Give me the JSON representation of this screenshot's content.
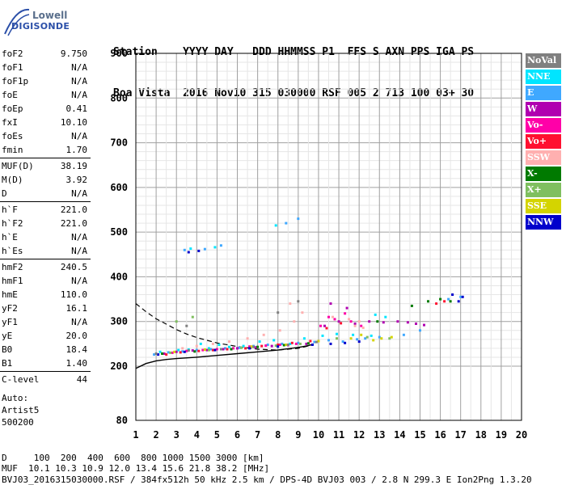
{
  "logo": {
    "line1": "Lowell",
    "line2": "DIGISONDE"
  },
  "header": {
    "line1": "Station    YYYY DAY   DDD HHMMSS P1  FFS S AXN PPS IGA PS",
    "line2": "Boa Vista  2016 Nov10 315 030000 RSF 005 2 713 100 03+ 30"
  },
  "params": [
    [
      {
        "k": "foF2",
        "v": "9.750"
      },
      {
        "k": "foF1",
        "v": "N/A"
      },
      {
        "k": "foF1p",
        "v": "N/A"
      },
      {
        "k": "foE",
        "v": "N/A"
      },
      {
        "k": "foEp",
        "v": "0.41"
      },
      {
        "k": "fxI",
        "v": "10.10"
      },
      {
        "k": "foEs",
        "v": "N/A"
      },
      {
        "k": "fmin",
        "v": "1.70"
      }
    ],
    [
      {
        "k": "MUF(D)",
        "v": "38.19"
      },
      {
        "k": "M(D)",
        "v": "3.92"
      },
      {
        "k": "D",
        "v": "N/A"
      }
    ],
    [
      {
        "k": "h`F",
        "v": "221.0"
      },
      {
        "k": "h`F2",
        "v": "221.0"
      },
      {
        "k": "h`E",
        "v": "N/A"
      },
      {
        "k": "h`Es",
        "v": "N/A"
      }
    ],
    [
      {
        "k": "hmF2",
        "v": "240.5"
      },
      {
        "k": "hmF1",
        "v": "N/A"
      },
      {
        "k": "hmE",
        "v": "110.0"
      },
      {
        "k": "yF2",
        "v": "16.1"
      },
      {
        "k": "yF1",
        "v": "N/A"
      },
      {
        "k": "yE",
        "v": "20.0"
      },
      {
        "k": "B0",
        "v": "18.4"
      },
      {
        "k": "B1",
        "v": "1.40"
      }
    ],
    [
      {
        "k": "C-level",
        "v": "44"
      }
    ]
  ],
  "auto": {
    "line1": "Auto:",
    "line2": "Artist5",
    "line3": "500200"
  },
  "legend": [
    {
      "label": "NoVal",
      "color": "#808080"
    },
    {
      "label": "NNE",
      "color": "#00e5ff"
    },
    {
      "label": "E",
      "color": "#3fa8ff"
    },
    {
      "label": "W",
      "color": "#b000b0"
    },
    {
      "label": "Vo-",
      "color": "#ff00a8"
    },
    {
      "label": "Vo+",
      "color": "#ff1030"
    },
    {
      "label": "SSW",
      "color": "#ffb0b0"
    },
    {
      "label": "X-",
      "color": "#007a00"
    },
    {
      "label": "X+",
      "color": "#7fbf5f"
    },
    {
      "label": "SSE",
      "color": "#d4d400"
    },
    {
      "label": "NNW",
      "color": "#0000cc"
    }
  ],
  "footer": {
    "line1": "D     100  200  400  600  800 1000 1500 3000 [km]",
    "line2": "MUF  10.1 10.3 10.9 12.0 13.4 15.6 21.8 38.2 [MHz]",
    "line3": "BVJ03_2016315030000.RSF / 384fx512h 50 kHz 2.5 km / DPS-4D BVJ03 003 / 2.8 N 299.3 E Ion2Png 1.3.20"
  },
  "chart_data": {
    "type": "scatter",
    "xlabel": "",
    "ylabel": "",
    "xlim": [
      1,
      20
    ],
    "ylim": [
      80,
      900
    ],
    "xticks": [
      1,
      2,
      3,
      4,
      5,
      6,
      7,
      8,
      9,
      10,
      11,
      12,
      13,
      14,
      15,
      16,
      17,
      18,
      19,
      20
    ],
    "yticks": [
      80,
      200,
      300,
      400,
      500,
      600,
      700,
      800,
      900
    ],
    "grid": true,
    "series": [
      {
        "name": "NNE",
        "color": "#00e5ff",
        "points": [
          [
            2.2,
            232
          ],
          [
            3.1,
            236
          ],
          [
            3.6,
            237
          ],
          [
            4.2,
            250
          ],
          [
            4.6,
            240
          ],
          [
            5.1,
            248
          ],
          [
            5.6,
            243
          ],
          [
            6.3,
            245
          ],
          [
            7.1,
            255
          ],
          [
            7.8,
            258
          ],
          [
            8.6,
            250
          ],
          [
            9.3,
            262
          ],
          [
            10.2,
            268
          ],
          [
            10.9,
            272
          ],
          [
            11.7,
            270
          ],
          [
            12.6,
            268
          ],
          [
            13.3,
            310
          ],
          [
            12.8,
            315
          ],
          [
            3.7,
            463
          ],
          [
            4.9,
            466
          ],
          [
            7.9,
            515
          ]
        ]
      },
      {
        "name": "E",
        "color": "#3fa8ff",
        "points": [
          [
            1.9,
            226
          ],
          [
            2.6,
            231
          ],
          [
            3.3,
            233
          ],
          [
            4.0,
            236
          ],
          [
            4.7,
            238
          ],
          [
            5.4,
            240
          ],
          [
            6.1,
            241
          ],
          [
            6.8,
            245
          ],
          [
            7.5,
            248
          ],
          [
            8.2,
            250
          ],
          [
            9.0,
            252
          ],
          [
            9.8,
            254
          ],
          [
            10.5,
            258
          ],
          [
            11.2,
            255
          ],
          [
            11.9,
            260
          ],
          [
            12.3,
            262
          ],
          [
            13.0,
            265
          ],
          [
            14.2,
            270
          ],
          [
            15.0,
            280
          ],
          [
            16.4,
            350
          ],
          [
            17.0,
            355
          ],
          [
            3.4,
            460
          ],
          [
            4.4,
            462
          ],
          [
            5.2,
            470
          ],
          [
            8.4,
            520
          ],
          [
            9.0,
            530
          ]
        ]
      },
      {
        "name": "W",
        "color": "#b000b0",
        "points": [
          [
            2.4,
            228
          ],
          [
            3.0,
            232
          ],
          [
            3.8,
            235
          ],
          [
            4.5,
            236
          ],
          [
            5.3,
            238
          ],
          [
            6.0,
            240
          ],
          [
            6.9,
            242
          ],
          [
            7.7,
            245
          ],
          [
            8.5,
            247
          ],
          [
            9.4,
            250
          ],
          [
            10.3,
            290
          ],
          [
            11.0,
            300
          ],
          [
            11.8,
            295
          ],
          [
            12.5,
            300
          ],
          [
            13.2,
            298
          ],
          [
            13.9,
            300
          ],
          [
            14.4,
            298
          ],
          [
            14.8,
            295
          ],
          [
            15.2,
            292
          ],
          [
            11.4,
            330
          ],
          [
            10.6,
            340
          ]
        ]
      },
      {
        "name": "Vo-",
        "color": "#ff00a8",
        "points": [
          [
            2.8,
            230
          ],
          [
            3.5,
            234
          ],
          [
            4.3,
            236
          ],
          [
            5.0,
            238
          ],
          [
            5.8,
            240
          ],
          [
            6.6,
            244
          ],
          [
            7.4,
            246
          ],
          [
            8.1,
            248
          ],
          [
            8.9,
            250
          ],
          [
            10.1,
            290
          ],
          [
            10.8,
            305
          ],
          [
            11.3,
            318
          ],
          [
            11.6,
            300
          ],
          [
            10.5,
            310
          ],
          [
            12.1,
            290
          ]
        ]
      },
      {
        "name": "Vo+",
        "color": "#ff1030",
        "points": [
          [
            2.5,
            226
          ],
          [
            3.2,
            231
          ],
          [
            4.1,
            234
          ],
          [
            4.8,
            236
          ],
          [
            5.5,
            238
          ],
          [
            6.4,
            240
          ],
          [
            7.2,
            245
          ],
          [
            8.0,
            248
          ],
          [
            8.7,
            252
          ],
          [
            9.6,
            256
          ],
          [
            10.4,
            285
          ],
          [
            11.1,
            296
          ],
          [
            15.8,
            340
          ],
          [
            16.2,
            345
          ]
        ]
      },
      {
        "name": "SSW",
        "color": "#ffb0b0",
        "points": [
          [
            3.3,
            240
          ],
          [
            4.0,
            245
          ],
          [
            4.8,
            250
          ],
          [
            5.6,
            255
          ],
          [
            6.5,
            262
          ],
          [
            7.3,
            270
          ],
          [
            8.1,
            280
          ],
          [
            8.8,
            300
          ],
          [
            9.2,
            320
          ],
          [
            8.6,
            340
          ],
          [
            10.7,
            310
          ],
          [
            11.5,
            305
          ],
          [
            12.0,
            300
          ],
          [
            11.8,
            290
          ],
          [
            12.2,
            286
          ]
        ]
      },
      {
        "name": "X-",
        "color": "#007a00",
        "points": [
          [
            2.3,
            228
          ],
          [
            3.9,
            233
          ],
          [
            5.7,
            238
          ],
          [
            7.0,
            243
          ],
          [
            8.3,
            247
          ],
          [
            9.5,
            251
          ],
          [
            12.9,
            300
          ],
          [
            14.6,
            335
          ],
          [
            16.0,
            350
          ],
          [
            16.5,
            345
          ],
          [
            15.4,
            345
          ]
        ]
      },
      {
        "name": "X+",
        "color": "#7fbf5f",
        "points": [
          [
            2.7,
            230
          ],
          [
            4.6,
            236
          ],
          [
            6.2,
            241
          ],
          [
            7.9,
            246
          ],
          [
            9.1,
            250
          ],
          [
            10.9,
            262
          ],
          [
            12.4,
            265
          ],
          [
            13.5,
            262
          ],
          [
            3.0,
            300
          ],
          [
            3.8,
            310
          ]
        ]
      },
      {
        "name": "SSE",
        "color": "#d4d400",
        "points": [
          [
            2.9,
            232
          ],
          [
            4.4,
            237
          ],
          [
            6.7,
            244
          ],
          [
            8.4,
            248
          ],
          [
            10.0,
            256
          ],
          [
            11.6,
            262
          ],
          [
            12.7,
            258
          ],
          [
            13.1,
            262
          ],
          [
            13.6,
            265
          ],
          [
            12.1,
            270
          ]
        ]
      },
      {
        "name": "NNW",
        "color": "#0000cc",
        "points": [
          [
            2.1,
            226
          ],
          [
            3.4,
            232
          ],
          [
            4.9,
            236
          ],
          [
            6.6,
            240
          ],
          [
            8.0,
            244
          ],
          [
            9.7,
            248
          ],
          [
            10.6,
            250
          ],
          [
            11.3,
            252
          ],
          [
            12.0,
            255
          ],
          [
            16.6,
            360
          ],
          [
            17.1,
            355
          ],
          [
            16.9,
            345
          ],
          [
            3.6,
            455
          ],
          [
            4.1,
            458
          ]
        ]
      },
      {
        "name": "NoVal",
        "color": "#808080",
        "points": [
          [
            2.0,
            228
          ],
          [
            3.6,
            235
          ],
          [
            5.2,
            238
          ],
          [
            6.8,
            243
          ],
          [
            8.5,
            248
          ],
          [
            9.9,
            254
          ],
          [
            3.5,
            290
          ],
          [
            8.0,
            320
          ],
          [
            9.0,
            345
          ]
        ]
      }
    ],
    "traces": {
      "solid": [
        [
          1,
          195
        ],
        [
          1.5,
          206
        ],
        [
          2,
          212
        ],
        [
          2.5,
          215
        ],
        [
          3,
          217
        ],
        [
          4,
          220
        ],
        [
          5,
          224
        ],
        [
          6,
          228
        ],
        [
          7,
          232
        ],
        [
          8,
          236
        ],
        [
          9,
          242
        ],
        [
          9.5,
          246
        ],
        [
          9.75,
          250
        ]
      ],
      "dashed": [
        [
          1,
          340
        ],
        [
          1.5,
          322
        ],
        [
          2,
          306
        ],
        [
          2.5,
          294
        ],
        [
          3,
          282
        ],
        [
          3.5,
          272
        ],
        [
          4,
          264
        ],
        [
          5,
          252
        ],
        [
          6,
          244
        ],
        [
          7,
          238
        ],
        [
          8,
          236
        ],
        [
          9,
          240
        ],
        [
          9.75,
          248
        ]
      ]
    }
  }
}
